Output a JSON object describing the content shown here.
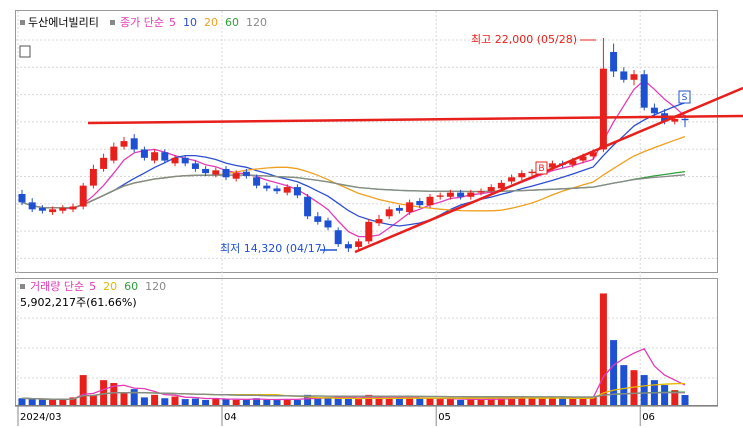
{
  "chart_data": {
    "type": "candlestick",
    "title": "두산에너빌리티",
    "price_ma_label": "종가 단순",
    "volume_label": "거래량 단순",
    "volume_info": "5,902,217주(61.66%)",
    "annotations": [
      "최고 22,000 (05/28)",
      "최저 14,320 (04/17)"
    ],
    "categories": [
      "2024/03",
      null,
      null,
      null,
      null,
      null,
      null,
      null,
      null,
      null,
      null,
      null,
      null,
      null,
      null,
      null,
      null,
      null,
      null,
      null,
      "04",
      null,
      null,
      null,
      null,
      null,
      null,
      null,
      null,
      null,
      null,
      null,
      null,
      null,
      null,
      null,
      null,
      null,
      null,
      null,
      null,
      "05",
      null,
      null,
      null,
      null,
      null,
      null,
      null,
      null,
      null,
      null,
      null,
      null,
      null,
      null,
      null,
      null,
      null,
      null,
      null,
      "06",
      null,
      null,
      null,
      null
    ],
    "open": [
      16400,
      16100,
      15900,
      15750,
      15800,
      15850,
      15950,
      16700,
      17300,
      17600,
      18100,
      18400,
      18000,
      17600,
      17900,
      17500,
      17700,
      17500,
      17300,
      17100,
      17300,
      16950,
      17200,
      17000,
      16700,
      16600,
      16450,
      16650,
      16300,
      15600,
      15450,
      15100,
      14600,
      14500,
      14700,
      15350,
      15600,
      15900,
      15750,
      16150,
      16000,
      16300,
      16300,
      16450,
      16300,
      16450,
      16500,
      16600,
      16850,
      17000,
      17150,
      17250,
      17350,
      17500,
      17450,
      17600,
      17750,
      18000,
      21500,
      20800,
      20500,
      20700,
      19500,
      19300,
      19000,
      19100
    ],
    "high": [
      16550,
      16250,
      16000,
      15950,
      16000,
      16050,
      16800,
      17450,
      17850,
      18250,
      18450,
      18550,
      18100,
      18000,
      18000,
      17800,
      17800,
      17600,
      17400,
      17350,
      17400,
      17250,
      17300,
      17100,
      16800,
      16700,
      16750,
      16750,
      16400,
      15750,
      15550,
      15200,
      14700,
      14800,
      15500,
      15650,
      15950,
      16000,
      16200,
      16250,
      16400,
      16450,
      16550,
      16550,
      16550,
      16600,
      16750,
      16900,
      17100,
      17250,
      17300,
      17450,
      17600,
      17600,
      17700,
      17850,
      18000,
      22000,
      21800,
      20950,
      20850,
      20850,
      19650,
      19450,
      19200,
      19250
    ],
    "low": [
      16000,
      15750,
      15700,
      15650,
      15700,
      15750,
      15850,
      16600,
      17200,
      17500,
      18000,
      17900,
      17600,
      17500,
      17500,
      17400,
      17400,
      17200,
      17050,
      17000,
      16900,
      16850,
      16950,
      16600,
      16500,
      16400,
      16350,
      16250,
      15500,
      15300,
      15100,
      14500,
      14320,
      14400,
      14600,
      15250,
      15500,
      15700,
      15650,
      15900,
      15900,
      16200,
      16200,
      16200,
      16200,
      16350,
      16400,
      16500,
      16750,
      16900,
      17050,
      17150,
      17250,
      17350,
      17350,
      17500,
      17650,
      17900,
      20600,
      20400,
      20300,
      19400,
      19200,
      18900,
      18900,
      18800
    ],
    "close": [
      16100,
      15850,
      15800,
      15850,
      15900,
      15950,
      16700,
      17300,
      17700,
      18100,
      18300,
      18000,
      17700,
      17900,
      17600,
      17700,
      17500,
      17300,
      17150,
      17250,
      17000,
      17150,
      17050,
      16700,
      16600,
      16500,
      16650,
      16350,
      15600,
      15400,
      15200,
      14600,
      14450,
      14700,
      15400,
      15500,
      15850,
      15800,
      16100,
      16000,
      16300,
      16350,
      16450,
      16300,
      16450,
      16500,
      16650,
      16800,
      17000,
      17150,
      17200,
      17350,
      17500,
      17450,
      17600,
      17750,
      17900,
      20900,
      20800,
      20500,
      20700,
      19500,
      19300,
      19000,
      19100,
      19050
    ],
    "volume": [
      4000000,
      3500000,
      3200000,
      3000000,
      3100000,
      4500000,
      17700000,
      6000000,
      14700000,
      13000000,
      7000000,
      9400000,
      4500000,
      6000000,
      4000000,
      5000000,
      3500000,
      3800000,
      3000000,
      4000000,
      3500000,
      3000000,
      3200000,
      4000000,
      3000000,
      3000000,
      3500000,
      3000000,
      6000000,
      4000000,
      4500000,
      5000000,
      4000000,
      3500000,
      6000000,
      5000000,
      4000000,
      4500000,
      4000000,
      3800000,
      4000000,
      3500000,
      3500000,
      3000000,
      3200000,
      3500000,
      3800000,
      4000000,
      4500000,
      5000000,
      4000000,
      3800000,
      4500000,
      4000000,
      4000000,
      4500000,
      5000000,
      66000000,
      38400000,
      23600000,
      20600000,
      17700000,
      14700000,
      11800000,
      8800000,
      5902217
    ],
    "up_color": "#e8201c",
    "down_color": "#1e50d2",
    "ylim": [
      13600,
      23365
    ],
    "volume_ylim": [
      0,
      71000000
    ],
    "price_ma": [
      {
        "period": 5,
        "color": "#e23ab8"
      },
      {
        "period": 10,
        "color": "#2d4fd0"
      },
      {
        "period": 20,
        "color": "#f0a020"
      },
      {
        "period": 60,
        "color": "#2fa03a"
      },
      {
        "period": 120,
        "color": "#8a8a8a"
      }
    ],
    "volume_ma": [
      {
        "period": 5,
        "color": "#e23ab8"
      },
      {
        "period": 20,
        "color": "#e6b800"
      },
      {
        "period": 60,
        "color": "#2fa03a"
      },
      {
        "period": 120,
        "color": "#8a8a8a"
      }
    ]
  }
}
